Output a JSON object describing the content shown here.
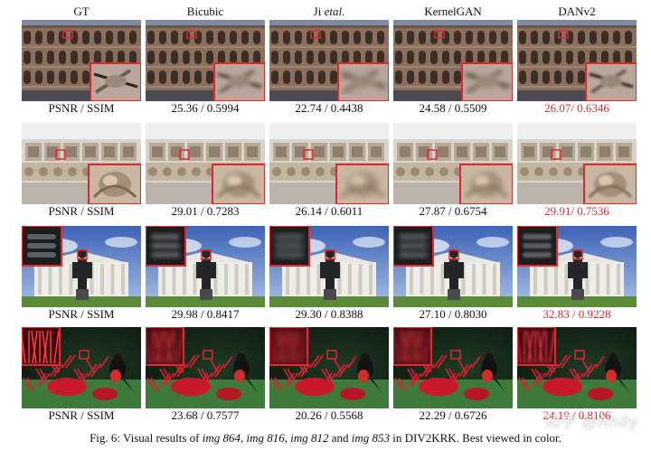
{
  "columns": [
    {
      "label": "GT",
      "italic": ""
    },
    {
      "label": "Bicubic",
      "italic": ""
    },
    {
      "label": "Ji ",
      "italic": "etal."
    },
    {
      "label": "KernelGAN",
      "italic": ""
    },
    {
      "label": "DANv2",
      "italic": ""
    }
  ],
  "rows": [
    {
      "scene": "colosseum",
      "metrics": [
        "PSNR / SSIM",
        "25.36 / 0.5994",
        "22.74 / 0.4438",
        "24.58 / 0.5509",
        "26.07/ 0.6346"
      ],
      "best_index": 4
    },
    {
      "scene": "stone-carvings",
      "metrics": [
        "PSNR / SSIM",
        "29.01 / 0.7283",
        "26.14 / 0.6011",
        "27.87 / 0.6754",
        "29.91/ 0.7536"
      ],
      "best_index": 4
    },
    {
      "scene": "statue-building",
      "metrics": [
        "PSNR / SSIM",
        "29.98 / 0.8417",
        "29.30 / 0.8388",
        "27.10 / 0.8030",
        "32.83 / 0.9228"
      ],
      "best_index": 4
    },
    {
      "scene": "bird-flowers",
      "metrics": [
        "PSNR / SSIM",
        "23.68 / 0.7577",
        "20.26 / 0.5568",
        "22.29 / 0.6726",
        "24.19 / 0.8106"
      ],
      "best_index": 4
    }
  ],
  "caption": {
    "prefix": "Fig. 6: Visual results of ",
    "img1": "img 864",
    "sep1": ", ",
    "img2": "img 816",
    "sep2": ", ",
    "img3": "img 812",
    "sep3": " and ",
    "img4": "img 853",
    "suffix": " in DIV2KRK. Best viewed in color."
  },
  "watermark": "知乎 @Andy",
  "colors": {
    "highlight_box": "#e3262b",
    "best_metric": "#e3262b"
  }
}
